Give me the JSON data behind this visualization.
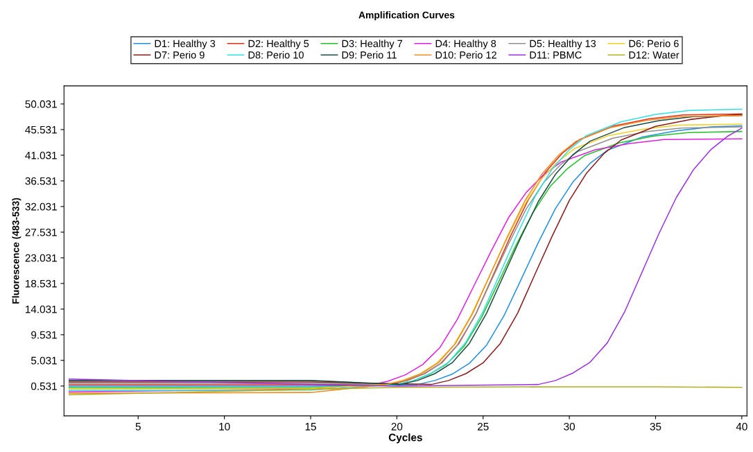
{
  "chart_data": {
    "type": "line",
    "title": "Amplification Curves",
    "xlabel": "Cycles",
    "ylabel": "Fluorescence (483-533)",
    "xlim": [
      0.7,
      40.3
    ],
    "xticks": [
      5,
      10,
      15,
      20,
      25,
      30,
      35,
      40
    ],
    "ylim": [
      -4.7,
      53.2
    ],
    "yticks": [
      0.531,
      5.031,
      9.531,
      14.031,
      18.531,
      23.031,
      27.531,
      32.031,
      36.531,
      41.031,
      45.531,
      50.031
    ],
    "grid": false,
    "legend": "top",
    "marker": "none",
    "line_style": "solid",
    "series": [
      {
        "name": "D1: Healthy 3",
        "color": "#1f8fe0",
        "x": [
          1,
          15,
          21.2,
          22.2,
          23.2,
          24.2,
          25.2,
          26.2,
          27.2,
          28.2,
          29.2,
          30.2,
          31.2,
          32.2,
          34.2,
          36.2,
          38.2,
          40
        ],
        "values": [
          0.5,
          0.5,
          0.8,
          1.5,
          2.6,
          4.5,
          7.7,
          12.8,
          19.2,
          25.7,
          31.7,
          36.3,
          39.6,
          41.9,
          44.2,
          45.3,
          46.0,
          46.2
        ]
      },
      {
        "name": "D2: Healthy 5",
        "color": "#e0301e",
        "x": [
          1,
          15,
          19.6,
          20.6,
          21.6,
          22.6,
          23.6,
          24.6,
          25.6,
          26.6,
          27.6,
          28.6,
          29.6,
          30.6,
          32.6,
          34.6,
          36.6,
          40
        ],
        "values": [
          0.75,
          0.75,
          0.8,
          1.5,
          2.7,
          4.6,
          8.0,
          13.3,
          20.1,
          26.9,
          33.1,
          38.0,
          41.4,
          43.8,
          46.2,
          47.4,
          48.1,
          48.3
        ]
      },
      {
        "name": "D3: Healthy 7",
        "color": "#22c02a",
        "x": [
          1,
          15,
          19.9,
          20.9,
          21.9,
          22.9,
          23.9,
          24.9,
          25.9,
          26.9,
          27.9,
          28.9,
          29.9,
          30.9,
          32.9,
          34.9,
          36.9,
          40
        ],
        "values": [
          0.25,
          0.25,
          0.8,
          1.4,
          2.6,
          4.4,
          7.5,
          12.5,
          18.8,
          25.2,
          31.0,
          35.6,
          38.7,
          41.0,
          43.2,
          44.4,
          45.0,
          45.2
        ]
      },
      {
        "name": "D4: Healthy 8",
        "color": "#e020e0",
        "x": [
          1,
          15,
          18.5,
          19.5,
          20.5,
          21.5,
          22.5,
          23.5,
          24.5,
          25.5,
          26.5,
          27.5,
          28.5,
          29.5,
          31.5,
          33.5,
          35.5,
          40
        ],
        "values": [
          -0.5,
          0.0,
          0.7,
          1.4,
          2.5,
          4.3,
          7.3,
          12.2,
          18.3,
          24.4,
          30.2,
          34.5,
          37.6,
          39.8,
          42.0,
          43.1,
          43.8,
          43.9
        ]
      },
      {
        "name": "D5: Healthy 13",
        "color": "#909090",
        "x": [
          1,
          15,
          19.5,
          20.5,
          21.5,
          22.5,
          23.5,
          24.5,
          25.5,
          26.5,
          27.5,
          28.5,
          29.5,
          30.5,
          32.5,
          34.5,
          36.5,
          40
        ],
        "values": [
          1.0,
          1.0,
          0.8,
          1.5,
          2.6,
          4.4,
          7.7,
          12.7,
          19.2,
          25.6,
          31.6,
          36.2,
          39.4,
          41.7,
          44.0,
          45.2,
          45.8,
          46.0
        ]
      },
      {
        "name": "D6: Perio 6",
        "color": "#f0d020",
        "x": [
          1,
          15,
          19.3,
          20.3,
          21.3,
          22.3,
          23.3,
          24.3,
          25.3,
          26.3,
          27.3,
          28.3,
          29.3,
          30.3,
          32.3,
          34.3,
          36.3,
          40
        ],
        "values": [
          0.0,
          0.1,
          0.8,
          1.5,
          2.6,
          4.5,
          7.7,
          12.9,
          19.4,
          25.9,
          31.9,
          36.6,
          39.8,
          42.2,
          44.5,
          45.6,
          46.3,
          46.5
        ]
      },
      {
        "name": "D7: Perio 9",
        "color": "#8b1a1a",
        "x": [
          1,
          15,
          22,
          23,
          24,
          25,
          26,
          27,
          28,
          29,
          30,
          31,
          32,
          33,
          35,
          37,
          39,
          40
        ],
        "values": [
          1.25,
          1.25,
          0.8,
          1.5,
          2.7,
          4.6,
          8.0,
          13.3,
          20.1,
          26.8,
          33.1,
          37.9,
          41.3,
          43.7,
          46.1,
          47.3,
          48.0,
          48.2
        ]
      },
      {
        "name": "D8: Perio 10",
        "color": "#30e0e0",
        "x": [
          1,
          15,
          20,
          21,
          22,
          23,
          24,
          25,
          26,
          27,
          28,
          29,
          30,
          31,
          33,
          35,
          37,
          40
        ],
        "values": [
          -0.25,
          -0.2,
          0.8,
          1.5,
          2.8,
          4.7,
          8.2,
          13.6,
          20.4,
          27.3,
          33.7,
          38.6,
          42.0,
          44.5,
          46.9,
          48.2,
          48.9,
          49.1
        ]
      },
      {
        "name": "D9: Perio 11",
        "color": "#1a4a40",
        "x": [
          1,
          15,
          20.2,
          21.2,
          22.2,
          23.2,
          24.2,
          25.2,
          26.2,
          27.2,
          28.2,
          29.2,
          30.2,
          31.2,
          33.2,
          35.2,
          37.2,
          40
        ],
        "values": [
          1.5,
          1.5,
          0.8,
          1.5,
          2.7,
          4.6,
          8.0,
          13.3,
          20.0,
          26.7,
          32.9,
          37.7,
          41.1,
          43.5,
          45.9,
          47.1,
          47.8,
          48.0
        ]
      },
      {
        "name": "D10: Perio 12",
        "color": "#f08c20",
        "x": [
          1,
          15,
          19.4,
          20.4,
          21.4,
          22.4,
          23.4,
          24.4,
          25.4,
          26.4,
          27.4,
          28.4,
          29.4,
          30.4,
          32.4,
          34.4,
          36.4,
          40
        ],
        "values": [
          -0.75,
          -0.6,
          0.8,
          1.5,
          2.7,
          4.6,
          8.0,
          13.3,
          20.0,
          26.7,
          32.9,
          37.7,
          41.1,
          43.5,
          45.9,
          47.1,
          47.8,
          48.0
        ]
      },
      {
        "name": "D11: PBMC",
        "color": "#9b30e0",
        "x": [
          1,
          20,
          28.2,
          29.2,
          30.2,
          31.2,
          32.2,
          33.2,
          34.2,
          35.2,
          36.2,
          37.2,
          38.2,
          39.2,
          40
        ],
        "values": [
          1.75,
          0.5,
          0.8,
          1.5,
          2.8,
          4.7,
          8.1,
          13.5,
          20.4,
          27.3,
          33.6,
          38.5,
          42.0,
          44.4,
          45.8
        ]
      },
      {
        "name": "D12: Water",
        "color": "#b0b020",
        "x": [
          1,
          20,
          30,
          35,
          40
        ],
        "values": [
          -1.0,
          0.3,
          0.4,
          0.4,
          0.3
        ]
      }
    ]
  }
}
